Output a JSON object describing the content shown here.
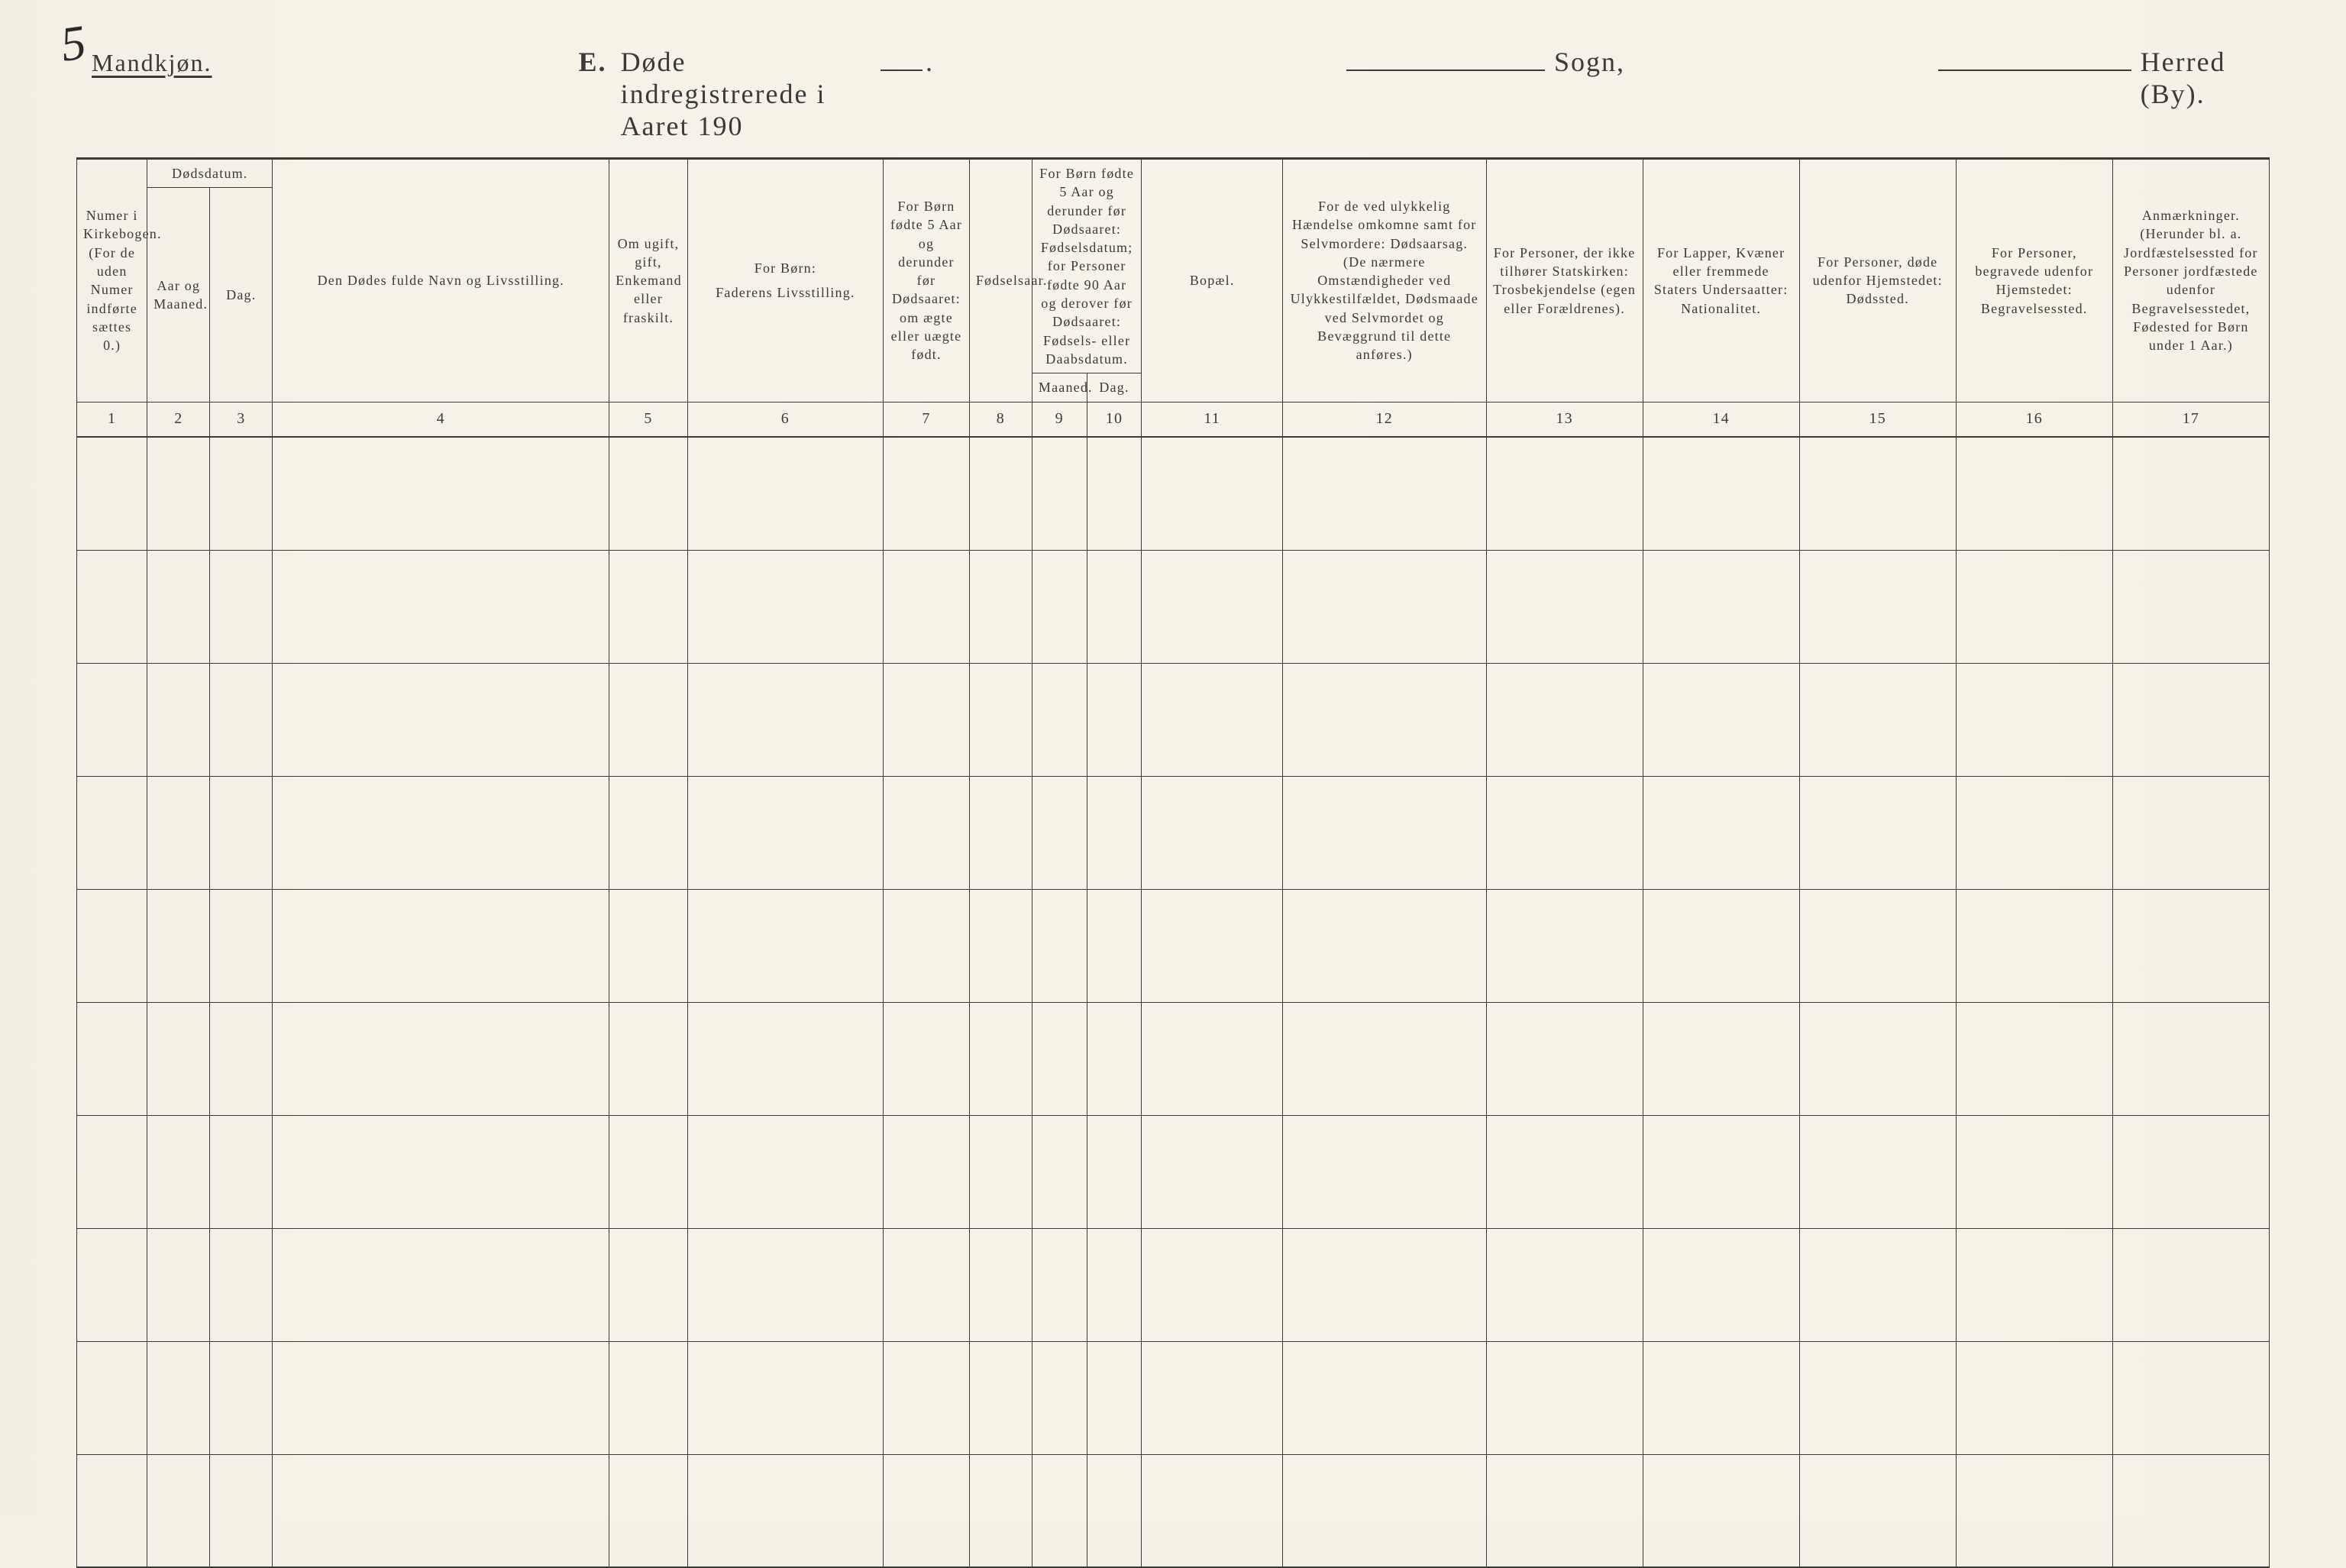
{
  "page": {
    "corner_number": "5",
    "gender_label": "Mandkjøn.",
    "title_letter": "E.",
    "title_text": "Døde indregistrerede i Aaret 190",
    "title_period": ".",
    "sogn_label": "Sogn,",
    "herred_label": "Herred (By)."
  },
  "colors": {
    "paper": "#f5f1e6",
    "ink": "#3a3a3a"
  },
  "headers": {
    "col1": "Numer i Kirkebogen. (For de uden Numer indførte sættes 0.)",
    "dodsdatum": "Dødsdatum.",
    "col2": "Aar og Maaned.",
    "col3": "Dag.",
    "col4": "Den Dødes fulde Navn og Livsstilling.",
    "col5": "Om ugift, gift, Enkemand eller fraskilt.",
    "col6_top": "For Børn:",
    "col6_bot": "Faderens Livsstilling.",
    "col7": "For Børn fødte 5 Aar og derunder før Dødsaaret: om ægte eller uægte født.",
    "col8": "Fødselsaar.",
    "col9_10_top": "For Børn fødte 5 Aar og derunder før Dødsaaret: Fødselsdatum; for Personer fødte 90 Aar og derover før Dødsaaret: Fødsels- eller Daabsdatum.",
    "col9": "Maaned.",
    "col10": "Dag.",
    "col11": "Bopæl.",
    "col12": "For de ved ulykkelig Hændelse omkomne samt for Selvmordere: Dødsaarsag. (De nærmere Omstændigheder ved Ulykkestilfældet, Dødsmaade ved Selvmordet og Bevæggrund til dette anføres.)",
    "col13": "For Personer, der ikke tilhører Statskirken: Trosbekjendelse (egen eller Forældrenes).",
    "col14": "For Lapper, Kvæner eller fremmede Staters Undersaatter: Nationalitet.",
    "col15": "For Personer, døde udenfor Hjemstedet: Dødssted.",
    "col16": "For Personer, begravede udenfor Hjemstedet: Begravelsessted.",
    "col17": "Anmærkninger. (Herunder bl. a. Jordfæstelsessted for Personer jordfæstede udenfor Begravelsesstedet, Fødested for Børn under 1 Aar.)"
  },
  "colnums": {
    "n1": "1",
    "n2": "2",
    "n3": "3",
    "n4": "4",
    "n5": "5",
    "n6": "6",
    "n7": "7",
    "n8": "8",
    "n9": "9",
    "n10": "10",
    "n11": "11",
    "n12": "12",
    "n13": "13",
    "n14": "14",
    "n15": "15",
    "n16": "16",
    "n17": "17"
  },
  "table": {
    "row_count": 10,
    "col_count": 17
  }
}
